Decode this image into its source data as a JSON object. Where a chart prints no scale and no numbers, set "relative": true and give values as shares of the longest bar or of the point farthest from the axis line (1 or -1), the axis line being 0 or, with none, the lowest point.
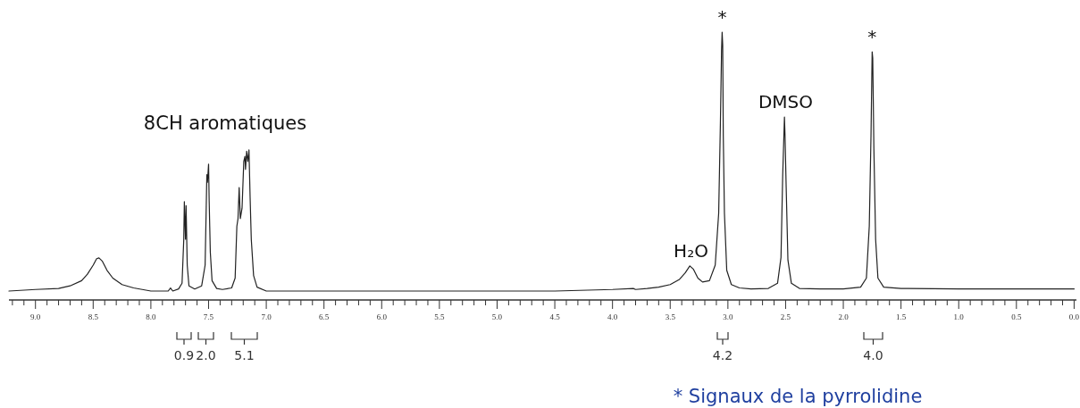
{
  "chart_data": {
    "type": "line",
    "relative": true,
    "x": [
      9.23,
      9.0,
      8.8,
      8.7,
      8.6,
      8.55,
      8.5,
      8.47,
      8.45,
      8.42,
      8.38,
      8.33,
      8.25,
      8.15,
      8.0,
      7.85,
      7.83,
      7.81,
      7.76,
      7.73,
      7.715,
      7.71,
      7.7,
      7.695,
      7.685,
      7.67,
      7.62,
      7.56,
      7.53,
      7.515,
      7.51,
      7.5,
      7.495,
      7.485,
      7.47,
      7.43,
      7.38,
      7.3,
      7.27,
      7.255,
      7.245,
      7.235,
      7.225,
      7.21,
      7.195,
      7.185,
      7.18,
      7.17,
      7.16,
      7.15,
      7.14,
      7.13,
      7.11,
      7.08,
      7.0,
      6.5,
      6.0,
      5.5,
      5.0,
      4.5,
      4.0,
      3.82,
      3.8,
      3.7,
      3.6,
      3.5,
      3.42,
      3.37,
      3.33,
      3.3,
      3.26,
      3.22,
      3.16,
      3.11,
      3.08,
      3.065,
      3.055,
      3.05,
      3.045,
      3.04,
      3.03,
      3.01,
      2.97,
      2.9,
      2.8,
      2.65,
      2.57,
      2.54,
      2.525,
      2.51,
      2.505,
      2.495,
      2.48,
      2.45,
      2.38,
      2.2,
      2.0,
      1.85,
      1.8,
      1.775,
      1.76,
      1.75,
      1.745,
      1.735,
      1.72,
      1.7,
      1.65,
      1.5,
      1.0,
      0.5,
      0.0
    ],
    "series": [
      {
        "color": "#222222",
        "values": [
          0,
          0.006,
          0.01,
          0.02,
          0.04,
          0.065,
          0.1,
          0.125,
          0.128,
          0.115,
          0.08,
          0.05,
          0.025,
          0.012,
          0,
          0,
          0.012,
          0,
          0.008,
          0.03,
          0.2,
          0.345,
          0.2,
          0.33,
          0.1,
          0.02,
          0.008,
          0.02,
          0.1,
          0.45,
          0.42,
          0.49,
          0.35,
          0.15,
          0.04,
          0.01,
          0.006,
          0.012,
          0.05,
          0.25,
          0.28,
          0.4,
          0.28,
          0.32,
          0.5,
          0.52,
          0.47,
          0.54,
          0.5,
          0.545,
          0.36,
          0.2,
          0.06,
          0.015,
          0,
          0,
          0,
          0,
          0,
          0,
          0.006,
          0.01,
          0.006,
          0.01,
          0.015,
          0.025,
          0.045,
          0.07,
          0.097,
          0.085,
          0.05,
          0.035,
          0.04,
          0.1,
          0.3,
          0.65,
          0.93,
          1.0,
          0.95,
          0.6,
          0.3,
          0.08,
          0.025,
          0.012,
          0.008,
          0.01,
          0.03,
          0.13,
          0.45,
          0.672,
          0.6,
          0.4,
          0.12,
          0.03,
          0.01,
          0.008,
          0.008,
          0.015,
          0.05,
          0.25,
          0.6,
          0.924,
          0.9,
          0.55,
          0.2,
          0.05,
          0.015,
          0.01,
          0.008,
          0.008,
          0.008
        ]
      }
    ],
    "xlim": [
      9.23,
      -0.02
    ],
    "xticks": [
      {
        "value": 9.2,
        "label": null
      },
      {
        "value": 9.1,
        "label": null
      },
      {
        "value": 9.0,
        "label": "9.0"
      },
      {
        "value": 8.9,
        "label": null
      },
      {
        "value": 8.8,
        "label": null
      },
      {
        "value": 8.7,
        "label": null
      },
      {
        "value": 8.6,
        "label": null
      },
      {
        "value": 8.5,
        "label": "8.5"
      },
      {
        "value": 8.4,
        "label": null
      },
      {
        "value": 8.3,
        "label": null
      },
      {
        "value": 8.2,
        "label": null
      },
      {
        "value": 8.1,
        "label": null
      },
      {
        "value": 8.0,
        "label": "8.0"
      },
      {
        "value": 7.9,
        "label": null
      },
      {
        "value": 7.8,
        "label": null
      },
      {
        "value": 7.7,
        "label": null
      },
      {
        "value": 7.6,
        "label": null
      },
      {
        "value": 7.5,
        "label": "7.5"
      },
      {
        "value": 7.4,
        "label": null
      },
      {
        "value": 7.3,
        "label": null
      },
      {
        "value": 7.2,
        "label": null
      },
      {
        "value": 7.1,
        "label": null
      },
      {
        "value": 7.0,
        "label": "7.0"
      },
      {
        "value": 6.9,
        "label": null
      },
      {
        "value": 6.8,
        "label": null
      },
      {
        "value": 6.7,
        "label": null
      },
      {
        "value": 6.6,
        "label": null
      },
      {
        "value": 6.5,
        "label": "6.5"
      },
      {
        "value": 6.4,
        "label": null
      },
      {
        "value": 6.3,
        "label": null
      },
      {
        "value": 6.2,
        "label": null
      },
      {
        "value": 6.1,
        "label": null
      },
      {
        "value": 6.0,
        "label": "6.0"
      },
      {
        "value": 5.9,
        "label": null
      },
      {
        "value": 5.8,
        "label": null
      },
      {
        "value": 5.7,
        "label": null
      },
      {
        "value": 5.6,
        "label": null
      },
      {
        "value": 5.5,
        "label": "5.5"
      },
      {
        "value": 5.4,
        "label": null
      },
      {
        "value": 5.3,
        "label": null
      },
      {
        "value": 5.2,
        "label": null
      },
      {
        "value": 5.1,
        "label": null
      },
      {
        "value": 5.0,
        "label": "5.0"
      },
      {
        "value": 4.9,
        "label": null
      },
      {
        "value": 4.8,
        "label": null
      },
      {
        "value": 4.7,
        "label": null
      },
      {
        "value": 4.6,
        "label": null
      },
      {
        "value": 4.5,
        "label": "4.5"
      },
      {
        "value": 4.4,
        "label": null
      },
      {
        "value": 4.3,
        "label": null
      },
      {
        "value": 4.2,
        "label": null
      },
      {
        "value": 4.1,
        "label": null
      },
      {
        "value": 4.0,
        "label": "4.0"
      },
      {
        "value": 3.9,
        "label": null
      },
      {
        "value": 3.8,
        "label": null
      },
      {
        "value": 3.7,
        "label": null
      },
      {
        "value": 3.6,
        "label": null
      },
      {
        "value": 3.5,
        "label": "3.5"
      },
      {
        "value": 3.4,
        "label": null
      },
      {
        "value": 3.3,
        "label": null
      },
      {
        "value": 3.2,
        "label": null
      },
      {
        "value": 3.1,
        "label": null
      },
      {
        "value": 3.0,
        "label": "3.0"
      },
      {
        "value": 2.9,
        "label": null
      },
      {
        "value": 2.8,
        "label": null
      },
      {
        "value": 2.7,
        "label": null
      },
      {
        "value": 2.6,
        "label": null
      },
      {
        "value": 2.5,
        "label": "2.5"
      },
      {
        "value": 2.4,
        "label": null
      },
      {
        "value": 2.3,
        "label": null
      },
      {
        "value": 2.2,
        "label": null
      },
      {
        "value": 2.1,
        "label": null
      },
      {
        "value": 2.0,
        "label": "2.0"
      },
      {
        "value": 1.9,
        "label": null
      },
      {
        "value": 1.8,
        "label": null
      },
      {
        "value": 1.7,
        "label": null
      },
      {
        "value": 1.6,
        "label": null
      },
      {
        "value": 1.5,
        "label": "1.5"
      },
      {
        "value": 1.4,
        "label": null
      },
      {
        "value": 1.3,
        "label": null
      },
      {
        "value": 1.2,
        "label": null
      },
      {
        "value": 1.1,
        "label": null
      },
      {
        "value": 1.0,
        "label": "1.0"
      },
      {
        "value": 0.9,
        "label": null
      },
      {
        "value": 0.8,
        "label": null
      },
      {
        "value": 0.7,
        "label": null
      },
      {
        "value": 0.6,
        "label": null
      },
      {
        "value": 0.5,
        "label": "0.5"
      },
      {
        "value": 0.4,
        "label": null
      },
      {
        "value": 0.3,
        "label": null
      },
      {
        "value": 0.2,
        "label": null
      },
      {
        "value": 0.1,
        "label": null
      },
      {
        "value": 0.0,
        "label": "0.0"
      }
    ],
    "annotations": [
      "8CH aromatiques",
      "0.9",
      "2.0",
      "5.1",
      "4.2",
      "4.0",
      {
        "text": "H₂O",
        "x": 3.32,
        "y": 0.097
      },
      {
        "text": "*",
        "x": 3.05,
        "y": 1.0
      },
      {
        "text": "DMSO",
        "x": 2.5,
        "y": 0.672
      },
      {
        "text": "*",
        "x": 1.75,
        "y": 0.924
      },
      "* Signaux de la pyrrolidine"
    ]
  }
}
